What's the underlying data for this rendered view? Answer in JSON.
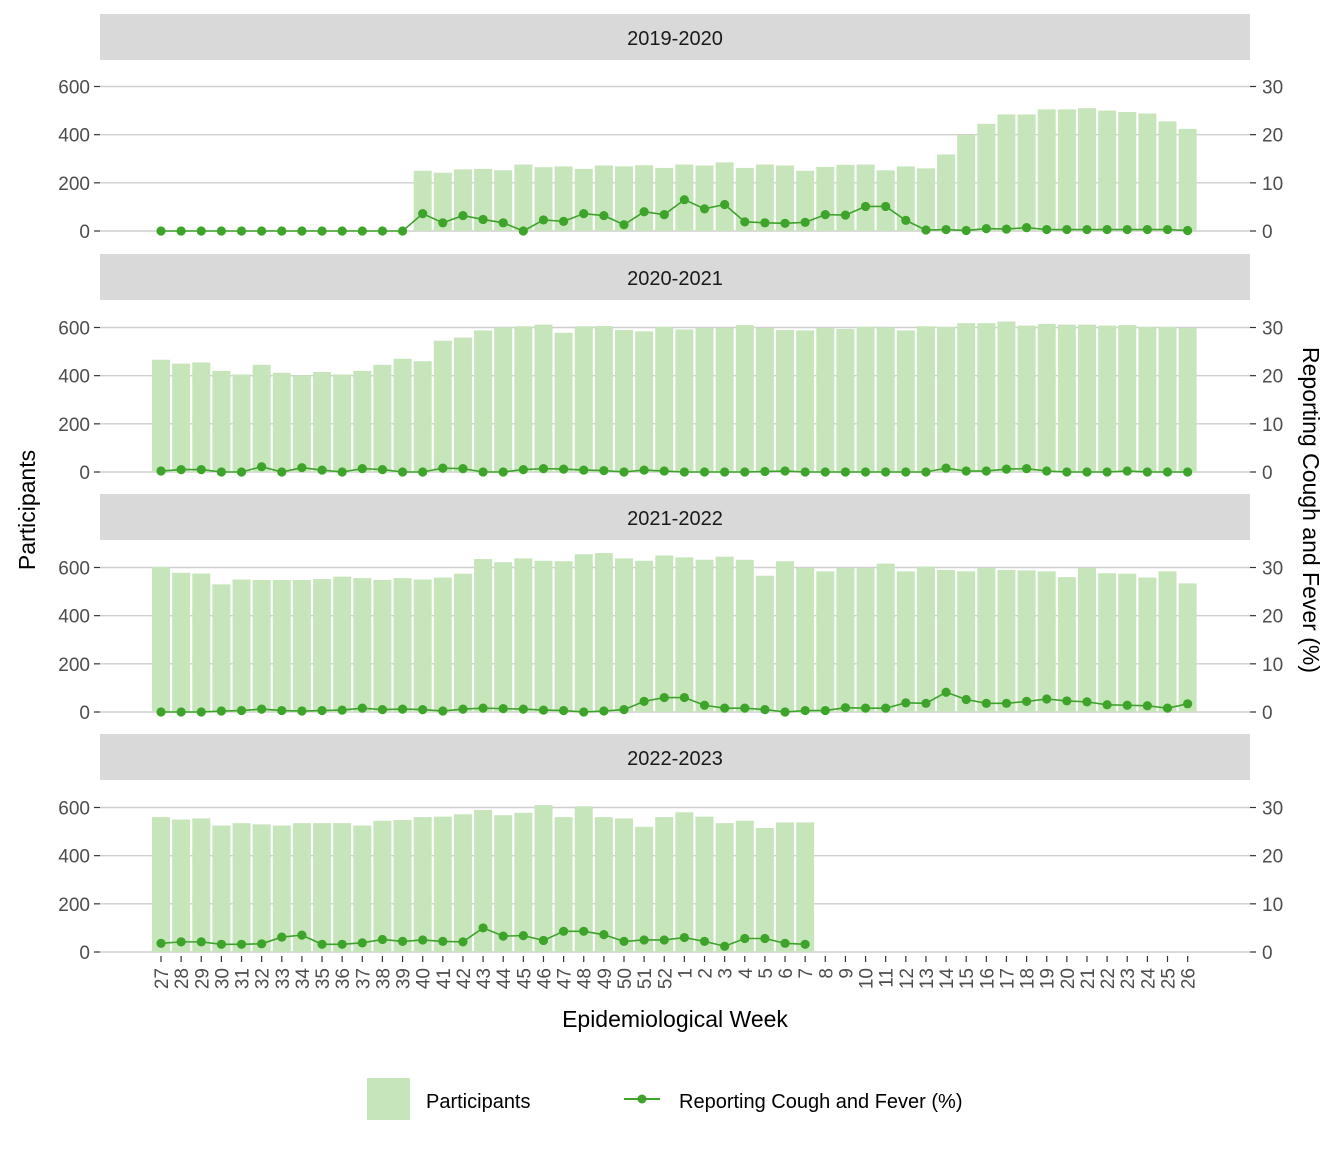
{
  "chart_data": {
    "type": "bar",
    "xlabel": "Epidemiological Week",
    "ylabel": "Participants",
    "y2label": "Reporting Cough and Fever (%)",
    "ylim": [
      0,
      600
    ],
    "y2lim": [
      0,
      30
    ],
    "yticks": [
      "0",
      "200",
      "400",
      "600"
    ],
    "y2ticks": [
      "0",
      "10",
      "20",
      "30"
    ],
    "categories": [
      "27",
      "28",
      "29",
      "30",
      "31",
      "32",
      "33",
      "34",
      "35",
      "36",
      "37",
      "38",
      "39",
      "40",
      "41",
      "42",
      "43",
      "44",
      "45",
      "46",
      "47",
      "48",
      "49",
      "50",
      "51",
      "52",
      "1",
      "2",
      "3",
      "4",
      "5",
      "6",
      "7",
      "8",
      "9",
      "10",
      "11",
      "12",
      "13",
      "14",
      "15",
      "16",
      "17",
      "18",
      "19",
      "20",
      "21",
      "22",
      "23",
      "24",
      "25",
      "26"
    ],
    "colors": {
      "participants": "#c7e5bb",
      "line": "#3da32a"
    },
    "legend": {
      "position": "bottom",
      "participants_label": "Participants",
      "line_label": "Reporting Cough and Fever (%)"
    },
    "grid": true,
    "facets": [
      {
        "label": "2019-2020",
        "participants": [
          null,
          null,
          null,
          null,
          null,
          null,
          null,
          null,
          null,
          null,
          null,
          null,
          null,
          250,
          242,
          256,
          258,
          252,
          276,
          265,
          268,
          258,
          272,
          268,
          273,
          262,
          276,
          272,
          285,
          262,
          276,
          272,
          250,
          266,
          275,
          276,
          252,
          268,
          260,
          318,
          400,
          445,
          484,
          484,
          505,
          505,
          510,
          500,
          494,
          488,
          455,
          424
        ],
        "pct": [
          0,
          0,
          0,
          0,
          0,
          0,
          0,
          0,
          0,
          0,
          0,
          0,
          0,
          3.6,
          1.7,
          3.2,
          2.4,
          1.7,
          0,
          2.3,
          2,
          3.6,
          3.2,
          1.3,
          4,
          3.4,
          6.5,
          4.6,
          5.5,
          1.9,
          1.7,
          1.6,
          1.8,
          3.4,
          3.3,
          5.1,
          5.1,
          2.2,
          0.2,
          0.3,
          0.1,
          0.5,
          0.4,
          0.7,
          0.3,
          0.3,
          0.3,
          0.3,
          0.3,
          0.3,
          0.3,
          0.1
        ]
      },
      {
        "label": "2020-2021",
        "participants": [
          466,
          450,
          455,
          420,
          405,
          445,
          412,
          402,
          415,
          405,
          420,
          445,
          470,
          460,
          545,
          558,
          588,
          600,
          605,
          612,
          578,
          605,
          606,
          590,
          584,
          603,
          592,
          598,
          599,
          610,
          598,
          590,
          588,
          598,
          594,
          603,
          600,
          588,
          605,
          602,
          618,
          618,
          625,
          608,
          615,
          612,
          612,
          608,
          610,
          602,
          602,
          598
        ],
        "pct": [
          0.2,
          0.5,
          0.5,
          0,
          0,
          1.1,
          0,
          0.9,
          0.4,
          0,
          0.7,
          0.5,
          0,
          0,
          0.8,
          0.7,
          0,
          0,
          0.5,
          0.7,
          0.6,
          0.4,
          0.3,
          0,
          0.4,
          0.2,
          0,
          0,
          0,
          0,
          0.1,
          0.2,
          0,
          0,
          0,
          0,
          0,
          0,
          0,
          0.8,
          0.2,
          0.2,
          0.6,
          0.7,
          0.2,
          0,
          0,
          0,
          0.2,
          0,
          0,
          0
        ]
      },
      {
        "label": "2021-2022",
        "participants": [
          602,
          578,
          575,
          530,
          550,
          548,
          548,
          548,
          552,
          562,
          556,
          548,
          556,
          550,
          558,
          574,
          635,
          622,
          638,
          628,
          626,
          655,
          660,
          638,
          628,
          650,
          642,
          632,
          645,
          632,
          566,
          626,
          598,
          584,
          598,
          598,
          616,
          584,
          604,
          590,
          584,
          598,
          590,
          588,
          584,
          560,
          598,
          576,
          574,
          558,
          584,
          534
        ],
        "pct": [
          0,
          0,
          0,
          0.2,
          0.3,
          0.6,
          0.3,
          0.2,
          0.3,
          0.4,
          0.8,
          0.5,
          0.6,
          0.5,
          0.2,
          0.6,
          0.8,
          0.7,
          0.6,
          0.4,
          0.3,
          0,
          0.2,
          0.5,
          2.2,
          3.0,
          3.0,
          1.4,
          0.8,
          0.8,
          0.5,
          0,
          0.3,
          0.3,
          0.9,
          0.8,
          0.8,
          1.9,
          1.8,
          4.1,
          2.6,
          1.8,
          1.8,
          2.2,
          2.7,
          2.3,
          2.1,
          1.5,
          1.4,
          1.3,
          0.8,
          1.7
        ]
      },
      {
        "label": "2022-2023",
        "participants": [
          560,
          550,
          555,
          525,
          535,
          530,
          525,
          535,
          535,
          535,
          525,
          545,
          548,
          560,
          562,
          572,
          590,
          568,
          578,
          610,
          560,
          605,
          560,
          555,
          520,
          560,
          580,
          562,
          535,
          545,
          515,
          538,
          538,
          null,
          null,
          null,
          null,
          null,
          null,
          null,
          null,
          null,
          null,
          null,
          null,
          null,
          null,
          null,
          null,
          null,
          null,
          null
        ],
        "pct": [
          1.8,
          2.1,
          2.1,
          1.6,
          1.6,
          1.7,
          3.1,
          3.5,
          1.6,
          1.6,
          1.9,
          2.6,
          2.2,
          2.5,
          2.2,
          2.1,
          5,
          3.3,
          3.4,
          2.4,
          4.3,
          4.3,
          3.6,
          2.2,
          2.5,
          2.5,
          3.0,
          2.2,
          1.2,
          2.8,
          2.8,
          1.8,
          1.6,
          null,
          null,
          null,
          null,
          null,
          null,
          null,
          null,
          null,
          null,
          null,
          null,
          null,
          null,
          null,
          null,
          null,
          null,
          null
        ]
      }
    ]
  }
}
